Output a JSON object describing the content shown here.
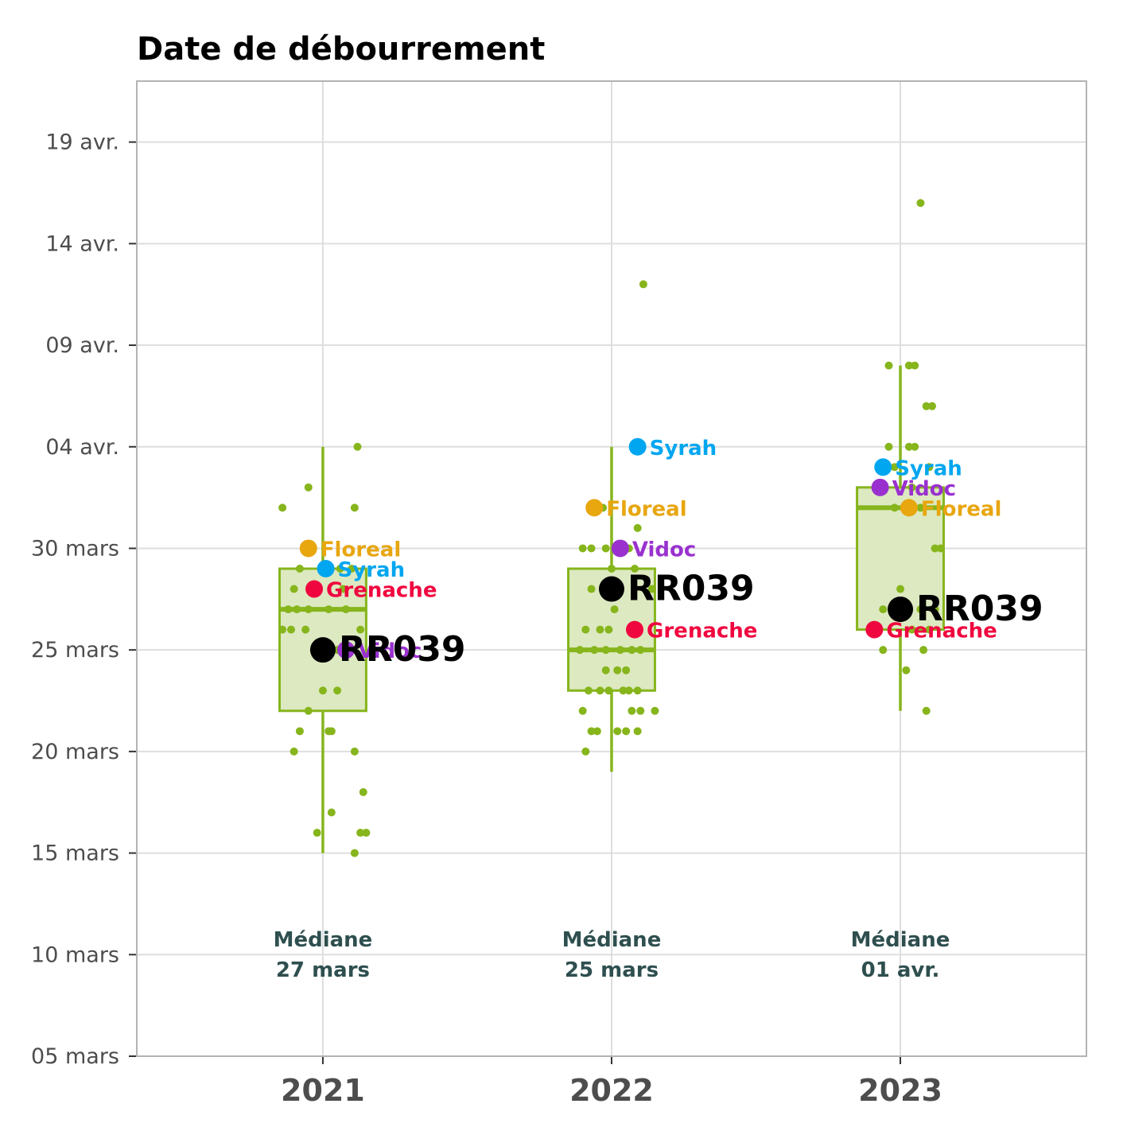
{
  "chart_data": {
    "type": "boxplot",
    "title": "Date de débourrement",
    "xlabel": "",
    "ylabel": "",
    "y_axis": {
      "min": "2024-03-05",
      "max": "2024-04-22",
      "ticks": [
        {
          "value": "2024-03-05",
          "label": "05 mars"
        },
        {
          "value": "2024-03-10",
          "label": "10 mars"
        },
        {
          "value": "2024-03-15",
          "label": "15 mars"
        },
        {
          "value": "2024-03-20",
          "label": "20 mars"
        },
        {
          "value": "2024-03-25",
          "label": "25 mars"
        },
        {
          "value": "2024-03-30",
          "label": "30 mars"
        },
        {
          "value": "2024-04-04",
          "label": "04 avr."
        },
        {
          "value": "2024-04-09",
          "label": "09 avr."
        },
        {
          "value": "2024-04-14",
          "label": "14 avr."
        },
        {
          "value": "2024-04-19",
          "label": "19 avr."
        }
      ]
    },
    "grid": true,
    "box_color": "#86b51c",
    "box_fill": "#dde9c1",
    "groups": [
      {
        "label": "2021",
        "box": {
          "whisker_low": "2024-03-15",
          "q1": "2024-03-22",
          "median": "2024-03-27",
          "q3": "2024-03-29",
          "whisker_high": "2024-04-04"
        },
        "points": [
          [
            "2024-04-04",
            0.12
          ],
          [
            "2024-04-02",
            -0.05
          ],
          [
            "2024-04-01",
            -0.14
          ],
          [
            "2024-04-01",
            0.11
          ],
          [
            "2024-03-29",
            -0.08
          ],
          [
            "2024-03-29",
            0.06
          ],
          [
            "2024-03-29",
            0.1
          ],
          [
            "2024-03-28",
            -0.1
          ],
          [
            "2024-03-28",
            0.07
          ],
          [
            "2024-03-27",
            -0.12
          ],
          [
            "2024-03-27",
            -0.09
          ],
          [
            "2024-03-27",
            -0.05
          ],
          [
            "2024-03-27",
            0.02
          ],
          [
            "2024-03-27",
            0.08
          ],
          [
            "2024-03-26",
            -0.14
          ],
          [
            "2024-03-26",
            -0.11
          ],
          [
            "2024-03-26",
            -0.06
          ],
          [
            "2024-03-26",
            0.13
          ],
          [
            "2024-03-25",
            -0.03
          ],
          [
            "2024-03-25",
            0.05
          ],
          [
            "2024-03-23",
            0.0
          ],
          [
            "2024-03-23",
            0.05
          ],
          [
            "2024-03-22",
            -0.05
          ],
          [
            "2024-03-21",
            -0.08
          ],
          [
            "2024-03-21",
            0.02
          ],
          [
            "2024-03-21",
            0.03
          ],
          [
            "2024-03-20",
            -0.1
          ],
          [
            "2024-03-20",
            0.11
          ],
          [
            "2024-03-18",
            0.14
          ],
          [
            "2024-03-17",
            0.03
          ],
          [
            "2024-03-16",
            -0.02
          ],
          [
            "2024-03-16",
            0.13
          ],
          [
            "2024-03-16",
            0.15
          ],
          [
            "2024-03-15",
            0.11
          ]
        ],
        "median_label": "Médiane",
        "median_value": "27 mars"
      },
      {
        "label": "2022",
        "box": {
          "whisker_low": "2024-03-19",
          "q1": "2024-03-23",
          "median": "2024-03-25",
          "q3": "2024-03-29",
          "whisker_high": "2024-04-04"
        },
        "points": [
          [
            "2024-04-12",
            0.11
          ],
          [
            "2024-04-01",
            -0.03
          ],
          [
            "2024-03-31",
            0.09
          ],
          [
            "2024-03-30",
            -0.1
          ],
          [
            "2024-03-30",
            -0.07
          ],
          [
            "2024-03-30",
            -0.02
          ],
          [
            "2024-03-30",
            0.06
          ],
          [
            "2024-03-29",
            0.0
          ],
          [
            "2024-03-29",
            0.08
          ],
          [
            "2024-03-28",
            -0.07
          ],
          [
            "2024-03-28",
            0.14
          ],
          [
            "2024-03-27",
            0.01
          ],
          [
            "2024-03-26",
            -0.09
          ],
          [
            "2024-03-26",
            -0.04
          ],
          [
            "2024-03-26",
            -0.01
          ],
          [
            "2024-03-25",
            -0.11
          ],
          [
            "2024-03-25",
            -0.06
          ],
          [
            "2024-03-25",
            -0.02
          ],
          [
            "2024-03-25",
            0.03
          ],
          [
            "2024-03-25",
            0.07
          ],
          [
            "2024-03-25",
            0.1
          ],
          [
            "2024-03-24",
            -0.02
          ],
          [
            "2024-03-24",
            0.02
          ],
          [
            "2024-03-24",
            0.05
          ],
          [
            "2024-03-23",
            -0.08
          ],
          [
            "2024-03-23",
            -0.04
          ],
          [
            "2024-03-23",
            -0.01
          ],
          [
            "2024-03-23",
            0.04
          ],
          [
            "2024-03-23",
            0.06
          ],
          [
            "2024-03-23",
            0.09
          ],
          [
            "2024-03-22",
            -0.1
          ],
          [
            "2024-03-22",
            0.07
          ],
          [
            "2024-03-22",
            0.1
          ],
          [
            "2024-03-22",
            0.15
          ],
          [
            "2024-03-21",
            -0.07
          ],
          [
            "2024-03-21",
            -0.05
          ],
          [
            "2024-03-21",
            0.02
          ],
          [
            "2024-03-21",
            0.05
          ],
          [
            "2024-03-21",
            0.09
          ],
          [
            "2024-03-20",
            -0.09
          ]
        ],
        "median_label": "Médiane",
        "median_value": "25 mars"
      },
      {
        "label": "2023",
        "box": {
          "whisker_low": "2024-03-22",
          "q1": "2024-03-26",
          "median": "2024-04-01",
          "q3": "2024-04-02",
          "whisker_high": "2024-04-08"
        },
        "points": [
          [
            "2024-04-16",
            0.07
          ],
          [
            "2024-04-08",
            -0.04
          ],
          [
            "2024-04-08",
            0.03
          ],
          [
            "2024-04-08",
            0.05
          ],
          [
            "2024-04-06",
            0.09
          ],
          [
            "2024-04-06",
            0.11
          ],
          [
            "2024-04-04",
            -0.04
          ],
          [
            "2024-04-04",
            0.03
          ],
          [
            "2024-04-04",
            0.05
          ],
          [
            "2024-04-03",
            -0.02
          ],
          [
            "2024-04-03",
            0.1
          ],
          [
            "2024-04-02",
            -0.07
          ],
          [
            "2024-04-02",
            0.04
          ],
          [
            "2024-04-01",
            -0.02
          ],
          [
            "2024-04-01",
            0.02
          ],
          [
            "2024-04-01",
            0.07
          ],
          [
            "2024-03-30",
            0.12
          ],
          [
            "2024-03-30",
            0.14
          ],
          [
            "2024-03-28",
            0.0
          ],
          [
            "2024-03-27",
            -0.06
          ],
          [
            "2024-03-27",
            -0.03
          ],
          [
            "2024-03-27",
            0.07
          ],
          [
            "2024-03-27",
            0.12
          ],
          [
            "2024-03-26",
            -0.08
          ],
          [
            "2024-03-26",
            0.04
          ],
          [
            "2024-03-26",
            0.1
          ],
          [
            "2024-03-25",
            -0.06
          ],
          [
            "2024-03-25",
            0.08
          ],
          [
            "2024-03-24",
            0.02
          ],
          [
            "2024-03-22",
            0.09
          ]
        ],
        "median_label": "Médiane",
        "median_value": "01 avr."
      }
    ],
    "highlights": [
      {
        "group": "2021",
        "name": "Floreal",
        "value": "2024-03-30",
        "color": "#e8a60f",
        "offset": -0.05,
        "label_class": "hl"
      },
      {
        "group": "2021",
        "name": "Syrah",
        "value": "2024-03-29",
        "color": "#00a6f0",
        "offset": 0.01,
        "label_class": "hl"
      },
      {
        "group": "2021",
        "name": "Grenache",
        "value": "2024-03-28",
        "color": "#f0063f",
        "offset": -0.03,
        "label_class": "hl"
      },
      {
        "group": "2021",
        "name": "Vidoc",
        "value": "2024-03-25",
        "color": "#9a31cf",
        "offset": 0.08,
        "label_class": "hl"
      },
      {
        "group": "2021",
        "name": "RR039",
        "value": "2024-03-25",
        "color": "#000000",
        "offset": 0.0,
        "label_class": "ref"
      },
      {
        "group": "2022",
        "name": "Syrah",
        "value": "2024-04-04",
        "color": "#00a6f0",
        "offset": 0.09,
        "label_class": "hl"
      },
      {
        "group": "2022",
        "name": "Floreal",
        "value": "2024-04-01",
        "color": "#e8a60f",
        "offset": -0.06,
        "label_class": "hl"
      },
      {
        "group": "2022",
        "name": "Vidoc",
        "value": "2024-03-30",
        "color": "#9a31cf",
        "offset": 0.03,
        "label_class": "hl"
      },
      {
        "group": "2022",
        "name": "RR039",
        "value": "2024-03-28",
        "color": "#000000",
        "offset": 0.0,
        "label_class": "ref"
      },
      {
        "group": "2022",
        "name": "Grenache",
        "value": "2024-03-26",
        "color": "#f0063f",
        "offset": 0.08,
        "label_class": "hl"
      },
      {
        "group": "2023",
        "name": "Syrah",
        "value": "2024-04-03",
        "color": "#00a6f0",
        "offset": -0.06,
        "label_class": "hl"
      },
      {
        "group": "2023",
        "name": "Vidoc",
        "value": "2024-04-02",
        "color": "#9a31cf",
        "offset": -0.07,
        "label_class": "hl"
      },
      {
        "group": "2023",
        "name": "Floreal",
        "value": "2024-04-01",
        "color": "#e8a60f",
        "offset": 0.03,
        "label_class": "hl"
      },
      {
        "group": "2023",
        "name": "RR039",
        "value": "2024-03-27",
        "color": "#000000",
        "offset": 0.0,
        "label_class": "ref"
      },
      {
        "group": "2023",
        "name": "Grenache",
        "value": "2024-03-26",
        "color": "#f0063f",
        "offset": -0.09,
        "label_class": "hl"
      }
    ]
  }
}
